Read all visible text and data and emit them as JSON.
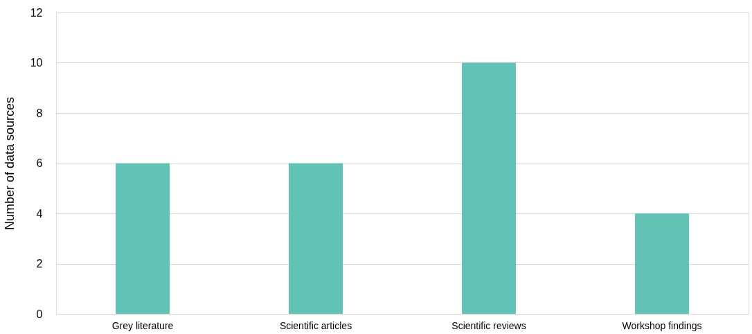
{
  "chart_data": {
    "type": "bar",
    "ylabel": "Number of data sources",
    "categories": [
      "Grey literature",
      "Scientific articles",
      "Scientific reviews",
      "Workshop findings"
    ],
    "values": [
      6,
      6,
      10,
      4
    ],
    "color": "#62c2b6",
    "ylim": [
      0,
      12
    ],
    "yticks": [
      0,
      2,
      4,
      6,
      8,
      10,
      12
    ],
    "grid": "y"
  }
}
